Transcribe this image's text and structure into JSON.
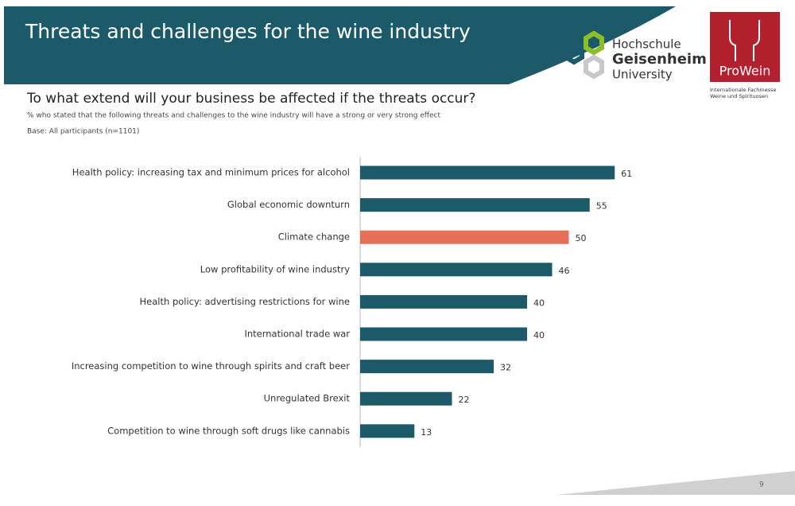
{
  "header": {
    "title": "Threats and challenges for the wine industry",
    "logo_left": [
      "Hochschule",
      "Geisenheim",
      "University"
    ],
    "logo_right": "ProWein",
    "logo_right_caption": [
      "Internationale Fachmesse",
      "Weine und Spirituosen"
    ],
    "page_number": "9"
  },
  "chart_data": {
    "type": "bar",
    "orientation": "horizontal",
    "title": "To what extend will your business be affected if the threats occur?",
    "subtitle": "% who stated that the following threats and challenges to the wine industry will have a strong or very strong effect",
    "note": "Base: All participants (n=1101)",
    "categories": [
      "Health policy: increasing tax and minimum prices for alcohol",
      "Global economic downturn",
      "Climate change",
      "Low profitability of wine industry",
      "Health policy: advertising restrictions for wine",
      "International trade war",
      "Increasing competition to wine through spirits and craft beer",
      "Unregulated Brexit",
      "Competition to wine through soft drugs like cannabis"
    ],
    "values": [
      61,
      55,
      50,
      46,
      40,
      40,
      32,
      22,
      13
    ],
    "colors": [
      "#1c5a69",
      "#1c5a69",
      "#e66f58",
      "#1c5a69",
      "#1c5a69",
      "#1c5a69",
      "#1c5a69",
      "#1c5a69",
      "#1c5a69"
    ],
    "xlim": [
      0,
      100
    ]
  }
}
